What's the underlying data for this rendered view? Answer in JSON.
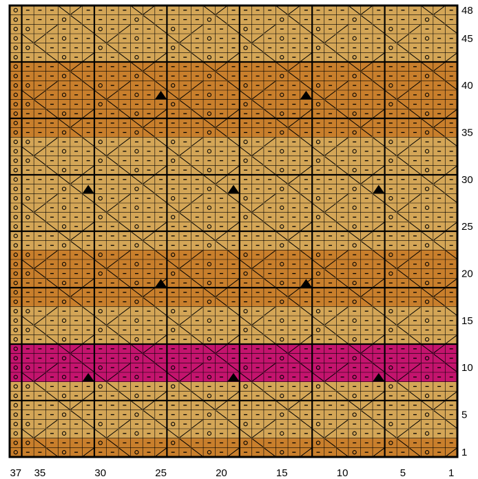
{
  "chart": {
    "stitch_count": 37,
    "row_count": 48,
    "pattern_repeat": {
      "width": 6,
      "height": 6
    },
    "colors": {
      "light_gold": "#d4a657",
      "dark_gold": "#c97f2c",
      "magenta": "#c4146e",
      "grid_line": "#000000"
    },
    "color_bands": [
      {
        "rows": [
          1,
          2
        ],
        "color": "dark_gold"
      },
      {
        "rows": [
          3,
          8
        ],
        "color": "light_gold"
      },
      {
        "rows": [
          9,
          12
        ],
        "color": "magenta"
      },
      {
        "rows": [
          13,
          16
        ],
        "color": "light_gold"
      },
      {
        "rows": [
          17,
          22
        ],
        "color": "dark_gold"
      },
      {
        "rows": [
          23,
          28
        ],
        "color": "light_gold"
      },
      {
        "rows": [
          29,
          34
        ],
        "color": "light_gold"
      },
      {
        "rows": [
          35,
          40
        ],
        "color": "dark_gold"
      },
      {
        "rows": [
          41,
          42
        ],
        "color": "dark_gold"
      },
      {
        "rows": [
          43,
          48
        ],
        "color": "light_gold"
      }
    ],
    "symbols": {
      "purl": "–",
      "yarn_over": "o",
      "decrease": "▲"
    },
    "triangle_markers": [
      {
        "stitch": 25,
        "row": 39
      },
      {
        "stitch": 13,
        "row": 39
      },
      {
        "stitch": 31,
        "row": 29
      },
      {
        "stitch": 19,
        "row": 29
      },
      {
        "stitch": 7,
        "row": 29
      },
      {
        "stitch": 25,
        "row": 19
      },
      {
        "stitch": 13,
        "row": 19
      },
      {
        "stitch": 31,
        "row": 9
      },
      {
        "stitch": 19,
        "row": 9
      },
      {
        "stitch": 7,
        "row": 9
      }
    ],
    "x_axis_labels": [
      "37",
      "35",
      "30",
      "25",
      "20",
      "15",
      "10",
      "5",
      "1"
    ],
    "x_axis_values": [
      37,
      35,
      30,
      25,
      20,
      15,
      10,
      5,
      1
    ],
    "y_axis_labels": [
      "1",
      "5",
      "10",
      "15",
      "20",
      "25",
      "30",
      "35",
      "40",
      "45",
      "48"
    ],
    "y_axis_values": [
      1,
      5,
      10,
      15,
      20,
      25,
      30,
      35,
      40,
      45,
      48
    ]
  }
}
